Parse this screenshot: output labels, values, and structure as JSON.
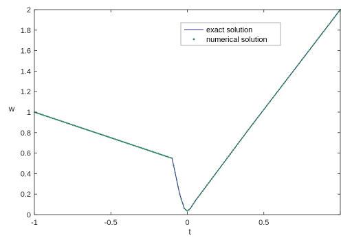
{
  "chart_data": {
    "type": "line",
    "xlabel": "t",
    "ylabel": "w",
    "xlim": [
      -1,
      1
    ],
    "ylim": [
      0,
      2
    ],
    "xticks": [
      -1,
      -0.5,
      0,
      0.5,
      1
    ],
    "xtick_labels": [
      "-1",
      "-0.5",
      "0",
      "0.5",
      ""
    ],
    "yticks": [
      0,
      0.2,
      0.4,
      0.6,
      0.8,
      1,
      1.2,
      1.4,
      1.6,
      1.8,
      2
    ],
    "ytick_labels": [
      "0",
      "0.2",
      "0.4",
      "0.6",
      "0.8",
      "1",
      "1.2",
      "1.4",
      "1.6",
      "1.8",
      "2"
    ],
    "grid": false,
    "legend_position": "top-right",
    "series": [
      {
        "name": "exact solution",
        "style": "line",
        "color": "#2f2f8f",
        "x": [
          -1,
          -0.8,
          -0.6,
          -0.4,
          -0.2,
          -0.1,
          -0.05,
          -0.02,
          0,
          0.02,
          0.05,
          0.1,
          0.2,
          0.4,
          0.6,
          0.8,
          1
        ],
        "y": [
          1,
          0.9,
          0.8,
          0.7,
          0.6,
          0.55,
          0.2,
          0.06,
          0.035,
          0.06,
          0.13,
          0.23,
          0.43,
          0.83,
          1.22,
          1.61,
          2
        ]
      },
      {
        "name": "numerical solution",
        "style": "markers",
        "color": "#2e8b57",
        "x": [
          -1,
          -0.8,
          -0.6,
          -0.4,
          -0.2,
          -0.1,
          -0.05,
          -0.02,
          0,
          0.02,
          0.05,
          0.1,
          0.2,
          0.4,
          0.6,
          0.8,
          1
        ],
        "y": [
          1,
          0.9,
          0.8,
          0.7,
          0.6,
          0.55,
          0.2,
          0.06,
          0.035,
          0.06,
          0.13,
          0.23,
          0.43,
          0.83,
          1.22,
          1.61,
          2
        ]
      }
    ]
  }
}
